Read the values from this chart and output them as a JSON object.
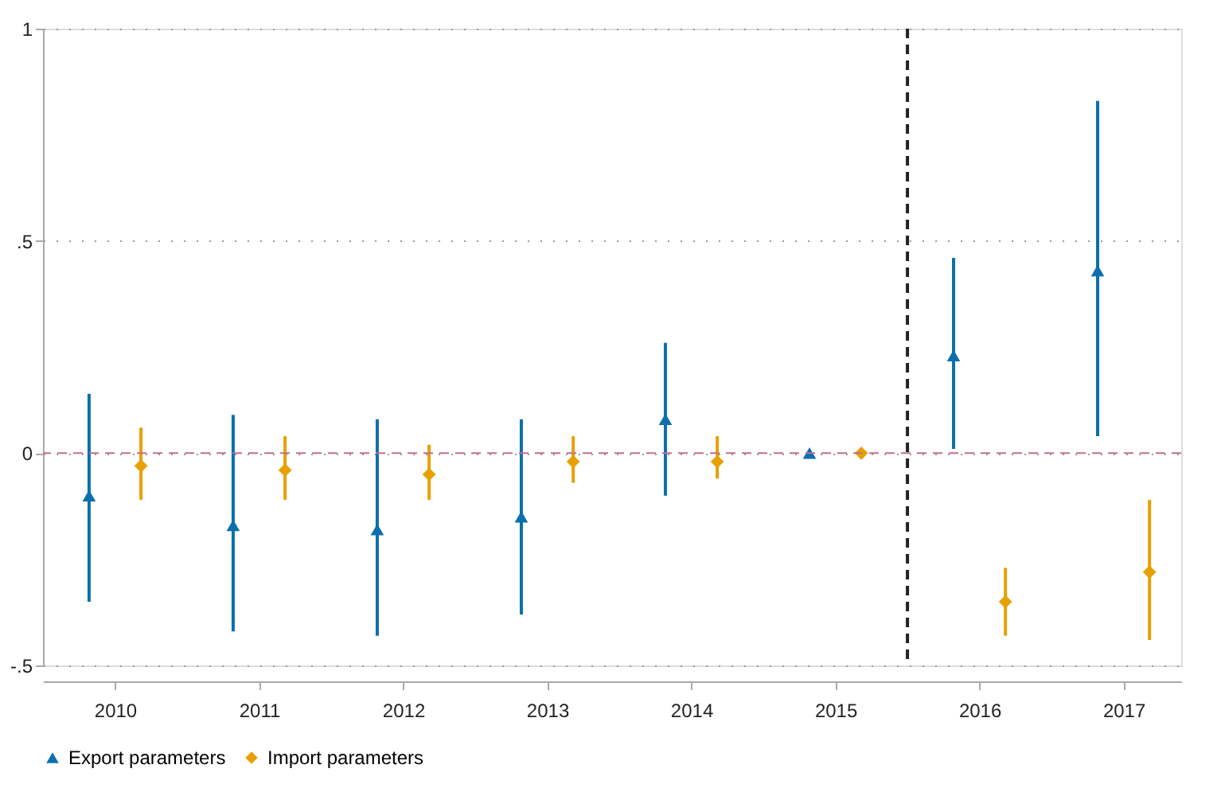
{
  "chart_data": {
    "type": "scatter",
    "series": [
      {
        "name": "Export parameters",
        "color": "#0b6fae",
        "marker": "triangle",
        "x": [
          2009.82,
          2010.82,
          2011.82,
          2012.82,
          2013.82,
          2014.82,
          2015.82,
          2016.82
        ],
        "values": [
          -0.1,
          -0.17,
          -0.18,
          -0.15,
          0.08,
          0,
          0.23,
          0.43
        ],
        "errors": [
          [
            -0.35,
            0.14
          ],
          [
            -0.42,
            0.09
          ],
          [
            -0.43,
            0.08
          ],
          [
            -0.38,
            0.08
          ],
          [
            -0.1,
            0.26
          ],
          null,
          [
            0.01,
            0.46
          ],
          [
            0.04,
            0.83
          ]
        ]
      },
      {
        "name": "Import parameters",
        "color": "#e8a000",
        "marker": "diamond",
        "x": [
          2010.18,
          2011.18,
          2012.18,
          2013.18,
          2014.18,
          2015.18,
          2016.18,
          2017.18
        ],
        "values": [
          -0.03,
          -0.04,
          -0.05,
          -0.02,
          -0.02,
          0,
          -0.35,
          -0.28
        ],
        "errors": [
          [
            -0.11,
            0.06
          ],
          [
            -0.11,
            0.04
          ],
          [
            -0.11,
            0.02
          ],
          [
            -0.07,
            0.04
          ],
          [
            -0.06,
            0.04
          ],
          null,
          [
            -0.43,
            -0.27
          ],
          [
            -0.44,
            -0.11
          ]
        ]
      }
    ],
    "xlim": [
      2009.5,
      2017.4
    ],
    "xticks": [
      2010,
      2011,
      2012,
      2013,
      2014,
      2015,
      2016,
      2017
    ],
    "ylim": [
      -0.5,
      1
    ],
    "yticks": [
      {
        "value": -0.5,
        "label": "-.5"
      },
      0,
      {
        "value": 0.5,
        "label": ".5"
      },
      1
    ],
    "grid": "y",
    "legend": "bottom",
    "ref_lines": [
      {
        "axis": "y",
        "value": 0,
        "color": "#c46d8e",
        "line_style": "dashed"
      },
      {
        "axis": "x",
        "value": 2015.5,
        "color": "#222222",
        "line_style": "dashed"
      }
    ]
  }
}
